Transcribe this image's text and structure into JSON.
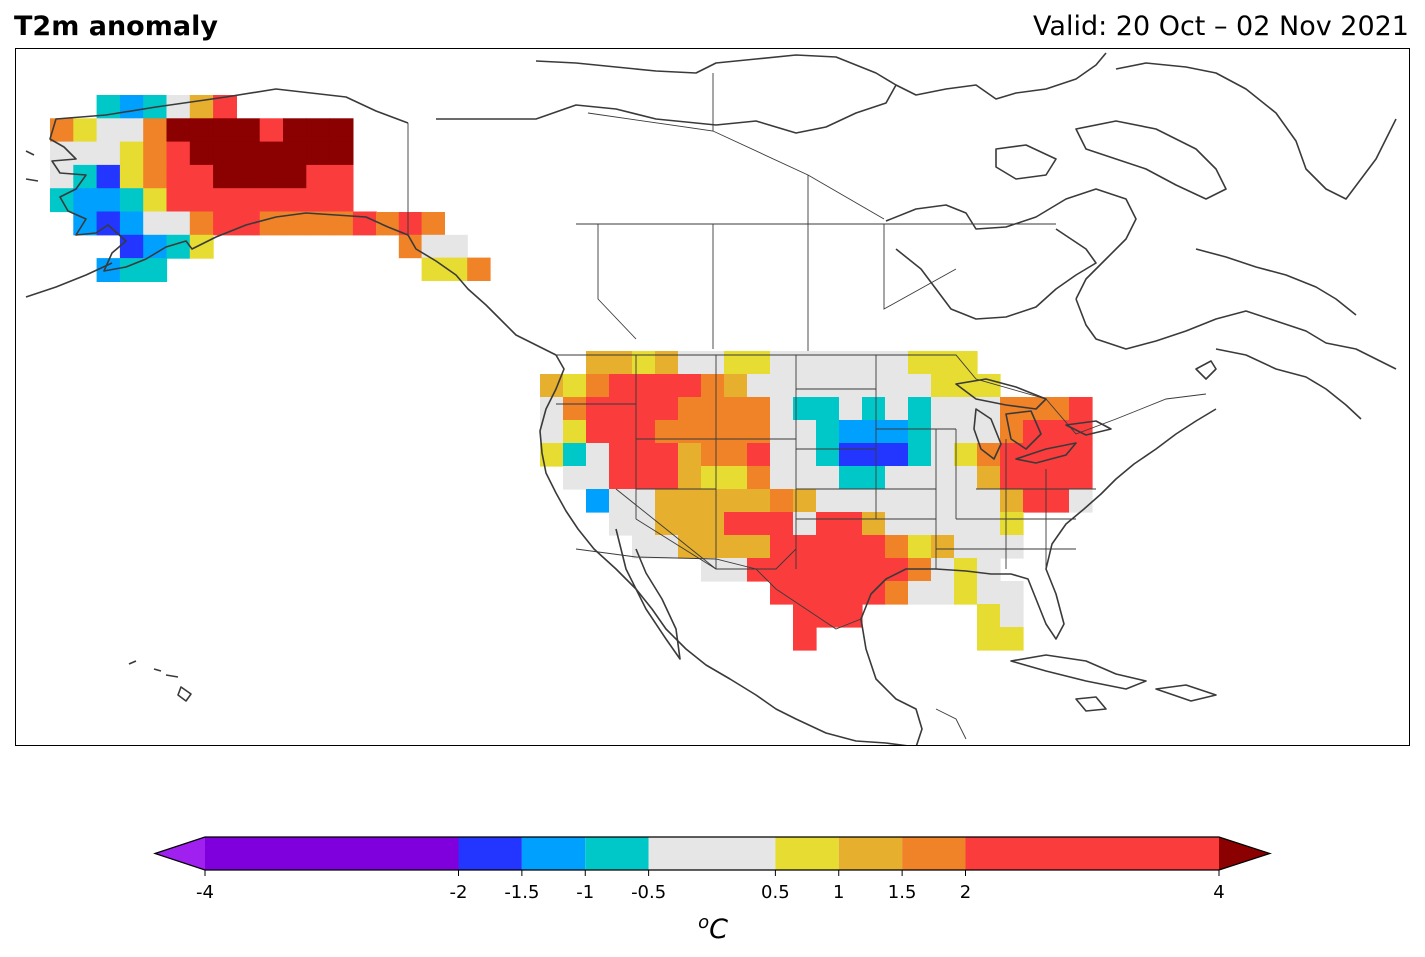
{
  "header": {
    "title": "T2m anomaly",
    "valid": "Valid: 20 Oct – 02 Nov 2021"
  },
  "colorbar": {
    "unit_base": "C",
    "unit_sup": "o",
    "ticks": [
      "-4",
      "-2",
      "-1.5",
      "-1",
      "-0.5",
      "0.5",
      "1",
      "1.5",
      "2",
      "4"
    ],
    "bins": [
      {
        "from": -4,
        "to": -2,
        "color": "#8000dd"
      },
      {
        "from": -2,
        "to": -1.5,
        "color": "#2236ff"
      },
      {
        "from": -1.5,
        "to": -1,
        "color": "#00a0ff"
      },
      {
        "from": -1,
        "to": -0.5,
        "color": "#00c8c8"
      },
      {
        "from": -0.5,
        "to": 0.5,
        "color": "#e6e6e6"
      },
      {
        "from": 0.5,
        "to": 1,
        "color": "#e6dc32"
      },
      {
        "from": 1,
        "to": 1.5,
        "color": "#e6af2d"
      },
      {
        "from": 1.5,
        "to": 2,
        "color": "#f08228"
      },
      {
        "from": 2,
        "to": 4,
        "color": "#fa3c3c"
      }
    ],
    "under_color": "#a020f0",
    "over_color": "#8b0000"
  },
  "map": {
    "region": "North America",
    "categories": {
      "P": "#a020f0",
      "V": "#8000dd",
      "B": "#2236ff",
      "L": "#00a0ff",
      "T": "#00c8c8",
      "G": "#e6e6e6",
      "Y": "#e6dc32",
      "O": "#e6af2d",
      "o": "#f08228",
      "R": "#fa3c3c",
      "D": "#8b0000"
    }
  }
}
